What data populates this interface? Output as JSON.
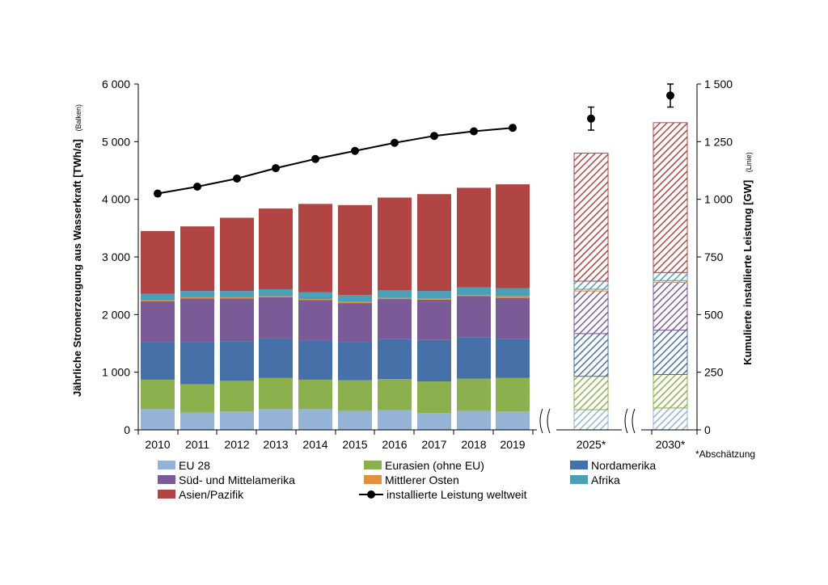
{
  "chart_data": {
    "type": "bar",
    "stacked": true,
    "categories": [
      "2010",
      "2011",
      "2012",
      "2013",
      "2014",
      "2015",
      "2016",
      "2017",
      "2018",
      "2019",
      "2025*",
      "2030*"
    ],
    "estimated_categories": [
      "2025*",
      "2030*"
    ],
    "series": [
      {
        "name": "EU 28",
        "color": "#95b3d7",
        "values": [
          360,
          300,
          320,
          360,
          360,
          330,
          340,
          290,
          330,
          320,
          350,
          380
        ]
      },
      {
        "name": "Eurasien (ohne EU)",
        "color": "#8db04f",
        "values": [
          510,
          490,
          530,
          540,
          510,
          530,
          540,
          550,
          560,
          580,
          580,
          580
        ]
      },
      {
        "name": "Nordamerika",
        "color": "#4570a8",
        "values": [
          650,
          730,
          690,
          690,
          680,
          660,
          700,
          720,
          710,
          680,
          740,
          770
        ]
      },
      {
        "name": "Süd- und Mittelamerika",
        "color": "#7a5b97",
        "values": [
          710,
          760,
          740,
          710,
          700,
          680,
          690,
          700,
          720,
          710,
          740,
          830
        ]
      },
      {
        "name": "Mittlerer Osten",
        "color": "#e28f3f",
        "values": [
          20,
          20,
          20,
          20,
          20,
          20,
          20,
          20,
          20,
          30,
          30,
          30
        ]
      },
      {
        "name": "Afrika",
        "color": "#4aa0b7",
        "values": [
          110,
          110,
          110,
          120,
          120,
          120,
          130,
          130,
          130,
          140,
          140,
          140
        ]
      },
      {
        "name": "Asien/Pazifik",
        "color": "#b04543",
        "values": [
          1090,
          1120,
          1270,
          1400,
          1530,
          1560,
          1610,
          1680,
          1730,
          1800,
          2220,
          2600
        ]
      }
    ],
    "line": {
      "name": "installierte Leistung weltweit",
      "axis": "right",
      "x": [
        "2010",
        "2011",
        "2012",
        "2013",
        "2014",
        "2015",
        "2016",
        "2017",
        "2018",
        "2019",
        "2025*",
        "2030*"
      ],
      "values": [
        1025,
        1055,
        1090,
        1135,
        1175,
        1210,
        1245,
        1275,
        1295,
        1310,
        1350,
        1450
      ],
      "connected_until": "2019",
      "error_bars": {
        "2025*": [
          1300,
          1400
        ],
        "2030*": [
          1400,
          1500
        ]
      }
    },
    "y_left": {
      "label": "Jährliche Stromerzeugung aus Wasserkraft  [TWh/a]",
      "sublabel": "(Balken)",
      "ylim": [
        0,
        6000
      ],
      "ticks": [
        "0",
        "1 000",
        "2 000",
        "3 000",
        "4 000",
        "5 000",
        "6 000"
      ]
    },
    "y_right": {
      "label": "Kumulierte installierte Leistung [GW]",
      "sublabel": "(Linie)",
      "ylim": [
        0,
        1500
      ],
      "ticks": [
        "0",
        "250",
        "500",
        "750",
        "1 000",
        "1 250",
        "1 500"
      ]
    },
    "footnote": "*Abschätzung",
    "grid": false,
    "legend_position": "bottom"
  }
}
